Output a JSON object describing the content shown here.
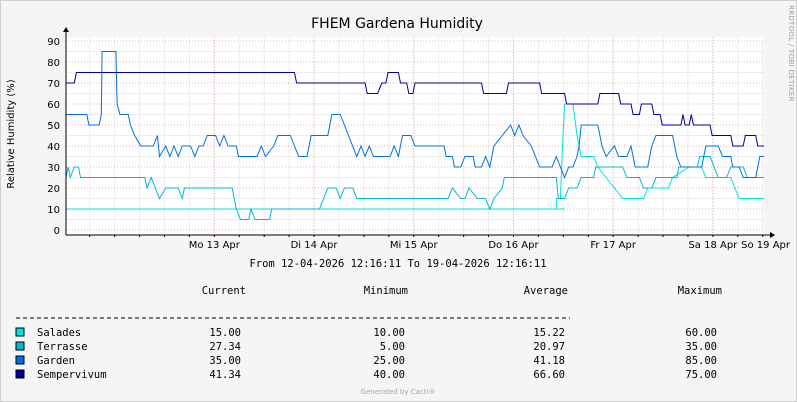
{
  "watermark": "RRDTOOL / TOBI OETIKER",
  "period": "From 12-04-2026 12:16:11 To 19-04-2026 12:16:11",
  "footer": "Generated by Cacti®",
  "legend_headers": [
    "Current",
    "Minimum",
    "Average",
    "Maximum"
  ],
  "legend_rows": [
    {
      "name": "Salades",
      "color": "#00e0e0",
      "current": "15.00",
      "minimum": "10.00",
      "average": "15.22",
      "maximum": "60.00"
    },
    {
      "name": "Terrasse",
      "color": "#00b8d8",
      "current": "27.34",
      "minimum": "5.00",
      "average": "20.97",
      "maximum": "35.00"
    },
    {
      "name": "Garden",
      "color": "#0070e0",
      "current": "35.00",
      "minimum": "25.00",
      "average": "41.18",
      "maximum": "85.00"
    },
    {
      "name": "Sempervivum",
      "color": "#0000a0",
      "current": "41.34",
      "minimum": "40.00",
      "average": "66.60",
      "maximum": "75.00"
    }
  ],
  "chart_data": {
    "type": "line",
    "title": "FHEM Gardena Humidity",
    "ylabel": "Relative Humidity (%)",
    "xlabel": "",
    "ylim": [
      0,
      90
    ],
    "yticks": [
      0,
      10,
      20,
      30,
      40,
      50,
      60,
      70,
      80,
      90
    ],
    "xlim": [
      0,
      168
    ],
    "xticks": [
      {
        "at": 35.7,
        "label": "Mo 13 Apr"
      },
      {
        "at": 59.7,
        "label": "Di 14 Apr"
      },
      {
        "at": 83.7,
        "label": "Mi 15 Apr"
      },
      {
        "at": 107.7,
        "label": "Do 16 Apr"
      },
      {
        "at": 131.7,
        "label": "Fr 17 Apr"
      },
      {
        "at": 155.7,
        "label": "Sa 18 Apr"
      },
      {
        "at": 179.7,
        "label": "So 19 Apr"
      }
    ],
    "grid": true,
    "series": [
      {
        "name": "Salades",
        "color": "#00e0e0",
        "points": [
          [
            0,
            10
          ],
          [
            41,
            10
          ],
          [
            41,
            10
          ],
          [
            72,
            10
          ],
          [
            96,
            10
          ],
          [
            120,
            10
          ],
          [
            118,
            10
          ],
          [
            118,
            15
          ],
          [
            119,
            15
          ],
          [
            119.5,
            40
          ],
          [
            120,
            60
          ],
          [
            122,
            60
          ],
          [
            123,
            45
          ],
          [
            124,
            35
          ],
          [
            127,
            35
          ],
          [
            128,
            30
          ],
          [
            130,
            25
          ],
          [
            132,
            20
          ],
          [
            134,
            15
          ],
          [
            139,
            15
          ],
          [
            140,
            20
          ],
          [
            145,
            20
          ],
          [
            146,
            25
          ],
          [
            150,
            30
          ],
          [
            153,
            30
          ],
          [
            154,
            25
          ],
          [
            160,
            25
          ],
          [
            161,
            20
          ],
          [
            162,
            15
          ],
          [
            168,
            15
          ]
        ]
      },
      {
        "name": "Terrasse",
        "color": "#00b8d8",
        "points": [
          [
            0,
            25
          ],
          [
            0.5,
            30
          ],
          [
            1,
            25
          ],
          [
            2,
            30
          ],
          [
            3,
            30
          ],
          [
            3.5,
            25
          ],
          [
            19,
            25
          ],
          [
            19.5,
            20
          ],
          [
            20.5,
            25
          ],
          [
            21.5,
            20
          ],
          [
            22.5,
            15
          ],
          [
            24,
            20
          ],
          [
            27,
            20
          ],
          [
            28,
            15
          ],
          [
            28.5,
            20
          ],
          [
            40,
            20
          ],
          [
            41,
            10
          ],
          [
            42,
            5
          ],
          [
            44,
            5
          ],
          [
            44.5,
            10
          ],
          [
            45.5,
            5
          ],
          [
            49,
            5
          ],
          [
            49.5,
            10
          ],
          [
            58,
            10
          ],
          [
            61,
            10
          ],
          [
            62,
            15
          ],
          [
            63,
            20
          ],
          [
            65,
            20
          ],
          [
            66,
            15
          ],
          [
            67,
            20
          ],
          [
            69,
            20
          ],
          [
            70,
            15
          ],
          [
            92,
            15
          ],
          [
            93,
            20
          ],
          [
            95,
            15
          ],
          [
            96,
            15
          ],
          [
            97,
            20
          ],
          [
            99,
            15
          ],
          [
            101,
            15
          ],
          [
            102,
            10
          ],
          [
            103,
            15
          ],
          [
            105,
            20
          ],
          [
            105.5,
            25
          ],
          [
            118,
            25
          ],
          [
            118.5,
            15
          ],
          [
            120,
            15
          ],
          [
            121,
            20
          ],
          [
            123,
            20
          ],
          [
            124,
            25
          ],
          [
            127,
            25
          ],
          [
            127.5,
            30
          ],
          [
            134,
            30
          ],
          [
            135,
            25
          ],
          [
            138,
            25
          ],
          [
            139,
            20
          ],
          [
            141,
            20
          ],
          [
            142,
            25
          ],
          [
            147,
            25
          ],
          [
            147.5,
            30
          ],
          [
            152,
            30
          ],
          [
            152.5,
            35
          ],
          [
            155,
            35
          ],
          [
            156,
            30
          ],
          [
            157,
            25
          ],
          [
            159,
            25
          ],
          [
            160,
            30
          ],
          [
            163,
            30
          ],
          [
            164,
            25
          ],
          [
            168,
            25
          ]
        ]
      },
      {
        "name": "Garden",
        "color": "#0070e0",
        "points": [
          [
            0,
            55
          ],
          [
            5,
            55
          ],
          [
            5.5,
            50
          ],
          [
            7,
            50
          ],
          [
            8,
            50
          ],
          [
            8.5,
            55
          ],
          [
            8.7,
            85
          ],
          [
            12,
            85
          ],
          [
            12.3,
            60
          ],
          [
            13,
            55
          ],
          [
            15,
            55
          ],
          [
            15.5,
            50
          ],
          [
            16.5,
            45
          ],
          [
            18,
            40
          ],
          [
            21,
            40
          ],
          [
            22,
            45
          ],
          [
            22.5,
            35
          ],
          [
            24,
            40
          ],
          [
            25,
            35
          ],
          [
            26,
            40
          ],
          [
            27,
            35
          ],
          [
            28,
            40
          ],
          [
            30,
            40
          ],
          [
            31,
            35
          ],
          [
            32,
            40
          ],
          [
            33,
            40
          ],
          [
            34,
            45
          ],
          [
            36,
            45
          ],
          [
            37,
            40
          ],
          [
            38,
            45
          ],
          [
            39,
            40
          ],
          [
            41,
            40
          ],
          [
            41.5,
            35
          ],
          [
            46,
            35
          ],
          [
            47,
            40
          ],
          [
            48,
            35
          ],
          [
            50,
            40
          ],
          [
            51,
            45
          ],
          [
            54,
            45
          ],
          [
            55,
            40
          ],
          [
            56,
            35
          ],
          [
            58,
            35
          ],
          [
            59,
            45
          ],
          [
            63,
            45
          ],
          [
            64,
            55
          ],
          [
            66,
            55
          ],
          [
            67,
            50
          ],
          [
            68,
            45
          ],
          [
            69,
            40
          ],
          [
            70,
            35
          ],
          [
            71,
            40
          ],
          [
            72,
            35
          ],
          [
            73,
            40
          ],
          [
            74,
            35
          ],
          [
            78,
            35
          ],
          [
            79,
            40
          ],
          [
            80,
            35
          ],
          [
            81,
            45
          ],
          [
            83,
            45
          ],
          [
            84,
            40
          ],
          [
            91,
            40
          ],
          [
            91.5,
            35
          ],
          [
            93,
            35
          ],
          [
            93.5,
            30
          ],
          [
            95,
            30
          ],
          [
            96,
            35
          ],
          [
            98,
            35
          ],
          [
            98.5,
            30
          ],
          [
            100,
            30
          ],
          [
            101,
            35
          ],
          [
            102,
            30
          ],
          [
            103,
            40
          ],
          [
            105,
            45
          ],
          [
            107,
            50
          ],
          [
            108,
            45
          ],
          [
            109,
            50
          ],
          [
            110,
            45
          ],
          [
            112,
            40
          ],
          [
            113,
            35
          ],
          [
            114,
            30
          ],
          [
            117,
            30
          ],
          [
            118,
            35
          ],
          [
            119,
            30
          ],
          [
            120,
            25
          ],
          [
            121,
            30
          ],
          [
            122,
            30
          ],
          [
            123,
            35
          ],
          [
            123.5,
            40
          ],
          [
            124,
            50
          ],
          [
            128,
            50
          ],
          [
            129,
            40
          ],
          [
            130,
            35
          ],
          [
            132,
            40
          ],
          [
            133,
            35
          ],
          [
            135,
            35
          ],
          [
            136,
            40
          ],
          [
            137,
            30
          ],
          [
            140,
            30
          ],
          [
            141,
            40
          ],
          [
            142,
            45
          ],
          [
            146,
            45
          ],
          [
            147,
            35
          ],
          [
            148,
            30
          ],
          [
            153,
            30
          ],
          [
            154,
            40
          ],
          [
            157,
            40
          ],
          [
            158,
            35
          ],
          [
            160,
            35
          ],
          [
            160.5,
            30
          ],
          [
            162,
            30
          ],
          [
            163,
            25
          ],
          [
            166,
            25
          ],
          [
            166.5,
            30
          ],
          [
            167,
            35
          ],
          [
            168,
            35
          ]
        ]
      },
      {
        "name": "Sempervivum",
        "color": "#0000a0",
        "points": [
          [
            0,
            70
          ],
          [
            2,
            70
          ],
          [
            2.5,
            75
          ],
          [
            55,
            75
          ],
          [
            55.5,
            70
          ],
          [
            72,
            70
          ],
          [
            72.5,
            65
          ],
          [
            75,
            65
          ],
          [
            76,
            70
          ],
          [
            77,
            70
          ],
          [
            77.5,
            75
          ],
          [
            80,
            75
          ],
          [
            80.5,
            70
          ],
          [
            82,
            70
          ],
          [
            82.5,
            65
          ],
          [
            83.5,
            65
          ],
          [
            84,
            70
          ],
          [
            100,
            70
          ],
          [
            100.5,
            65
          ],
          [
            106,
            65
          ],
          [
            106.5,
            70
          ],
          [
            114,
            70
          ],
          [
            114.5,
            65
          ],
          [
            120,
            65
          ],
          [
            120.5,
            60
          ],
          [
            128,
            60
          ],
          [
            128.5,
            65
          ],
          [
            133,
            65
          ],
          [
            133.5,
            60
          ],
          [
            136,
            60
          ],
          [
            136.5,
            55
          ],
          [
            138,
            55
          ],
          [
            138.5,
            60
          ],
          [
            141,
            60
          ],
          [
            141.5,
            55
          ],
          [
            143,
            55
          ],
          [
            143.5,
            50
          ],
          [
            148,
            50
          ],
          [
            148.5,
            55
          ],
          [
            149,
            50
          ],
          [
            150,
            50
          ],
          [
            150.5,
            55
          ],
          [
            151,
            50
          ],
          [
            155,
            50
          ],
          [
            155.5,
            45
          ],
          [
            160,
            45
          ],
          [
            160.5,
            40
          ],
          [
            163,
            40
          ],
          [
            163.5,
            45
          ],
          [
            166,
            45
          ],
          [
            166.5,
            40
          ],
          [
            168,
            40
          ]
        ]
      }
    ]
  }
}
